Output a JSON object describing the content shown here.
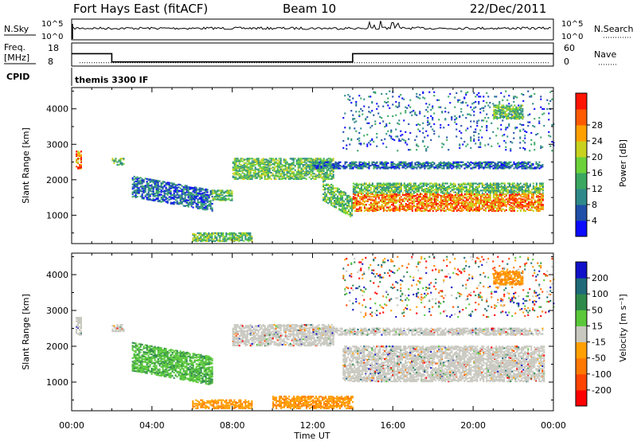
{
  "header": {
    "station": "Fort Hays East (fitACF)",
    "beam": "Beam 10",
    "date": "22/Dec/2011"
  },
  "noise_panel": {
    "left_label": "N.Sky",
    "left_ticks": [
      "10^5",
      "10^0"
    ],
    "right_ticks": [
      "10^5",
      "10^0"
    ],
    "right_label": "N.Search"
  },
  "freq_panel": {
    "label_line1": "Freq.",
    "label_line2": "[MHz]",
    "left_ticks": [
      "18",
      "8"
    ],
    "right_ticks": [
      "60",
      "0"
    ],
    "right_label": "Nave",
    "freq_steps": [
      [
        0,
        14
      ],
      [
        2,
        10
      ],
      [
        14,
        14
      ],
      [
        24,
        14
      ]
    ],
    "nave_level": 10
  },
  "cpid": {
    "label": "CPID",
    "value": "themis 3300 IF"
  },
  "chart_data": [
    {
      "type": "heatmap",
      "name": "power",
      "ylabel": "Slant Range [km]",
      "xlabel": "Time UT",
      "x_unit": "hours UT",
      "xlim": [
        0,
        24
      ],
      "ylim": [
        200,
        4600
      ],
      "x_ticks": [
        "00:00",
        "04:00",
        "08:00",
        "12:00",
        "16:00",
        "20:00",
        "00:00"
      ],
      "y_ticks": [
        "1000",
        "2000",
        "3000",
        "4000"
      ],
      "colorbar": {
        "label": "Power [dB]",
        "ticks": [
          "4",
          "8",
          "12",
          "16",
          "20",
          "24",
          "28"
        ],
        "colors": [
          "#0a0aff",
          "#1f4fa8",
          "#2e8a8a",
          "#3aa860",
          "#6cd23a",
          "#c8d21e",
          "#ffa000",
          "#ff5a00",
          "#ff1400"
        ]
      },
      "regions": [
        {
          "t": [
            0.2,
            0.5
          ],
          "r": [
            2300,
            2800
          ],
          "level": "high"
        },
        {
          "t": [
            2.0,
            2.6
          ],
          "r": [
            2400,
            2600
          ],
          "level": "mid"
        },
        {
          "t": [
            3.0,
            7.0
          ],
          "r": [
            1500,
            2100
          ],
          "level": "low",
          "slope": -400
        },
        {
          "t": [
            7.0,
            8.0
          ],
          "r": [
            1400,
            1700
          ],
          "level": "mid"
        },
        {
          "t": [
            6.0,
            9.0
          ],
          "r": [
            250,
            500
          ],
          "level": "mid"
        },
        {
          "t": [
            8.0,
            13.0
          ],
          "r": [
            2000,
            2600
          ],
          "level": "mid"
        },
        {
          "t": [
            12.5,
            14.0
          ],
          "r": [
            1400,
            2000
          ],
          "level": "mid",
          "slope": -500
        },
        {
          "t": [
            14.0,
            23.5
          ],
          "r": [
            1600,
            1900
          ],
          "level": "mid"
        },
        {
          "t": [
            14.0,
            23.5
          ],
          "r": [
            1100,
            1600
          ],
          "level": "high"
        },
        {
          "t": [
            12.0,
            23.5
          ],
          "r": [
            2300,
            2500
          ],
          "level": "low"
        },
        {
          "t": [
            13.5,
            24.0
          ],
          "r": [
            2800,
            4500
          ],
          "level": "sparse"
        },
        {
          "t": [
            21.0,
            22.5
          ],
          "r": [
            3700,
            4100
          ],
          "level": "mid"
        }
      ]
    },
    {
      "type": "heatmap",
      "name": "velocity",
      "ylabel": "Slant Range [km]",
      "xlabel": "Time UT",
      "x_unit": "hours UT",
      "xlim": [
        0,
        24
      ],
      "ylim": [
        200,
        4600
      ],
      "x_ticks": [
        "00:00",
        "04:00",
        "08:00",
        "12:00",
        "16:00",
        "20:00",
        "00:00"
      ],
      "y_ticks": [
        "1000",
        "2000",
        "3000",
        "4000"
      ],
      "colorbar": {
        "label": "Velocity [m s⁻¹]",
        "ticks": [
          "200",
          "100",
          "50",
          "15",
          "-15",
          "-50",
          "-100",
          "-200"
        ],
        "colors": [
          "#1010c8",
          "#1e6a78",
          "#2e8a4a",
          "#5ac83a",
          "#c8c8c0",
          "#ffa000",
          "#ff7800",
          "#ff4400",
          "#ff0000"
        ]
      },
      "regions": [
        {
          "t": [
            0.2,
            0.5
          ],
          "r": [
            2300,
            2800
          ],
          "level": "grey"
        },
        {
          "t": [
            2.0,
            2.6
          ],
          "r": [
            2400,
            2600
          ],
          "level": "grey"
        },
        {
          "t": [
            3.0,
            7.0
          ],
          "r": [
            1300,
            2100
          ],
          "level": "green",
          "slope": -400
        },
        {
          "t": [
            6.0,
            9.0
          ],
          "r": [
            250,
            500
          ],
          "level": "orange"
        },
        {
          "t": [
            8.0,
            13.0
          ],
          "r": [
            2000,
            2600
          ],
          "level": "grey"
        },
        {
          "t": [
            13.5,
            23.5
          ],
          "r": [
            1000,
            2000
          ],
          "level": "grey"
        },
        {
          "t": [
            12.0,
            23.5
          ],
          "r": [
            2300,
            2500
          ],
          "level": "grey"
        },
        {
          "t": [
            10.0,
            14.0
          ],
          "r": [
            250,
            600
          ],
          "level": "orange"
        },
        {
          "t": [
            13.5,
            24.0
          ],
          "r": [
            2800,
            4500
          ],
          "level": "sparse"
        },
        {
          "t": [
            21.0,
            22.5
          ],
          "r": [
            3700,
            4100
          ],
          "level": "orange"
        }
      ]
    }
  ]
}
